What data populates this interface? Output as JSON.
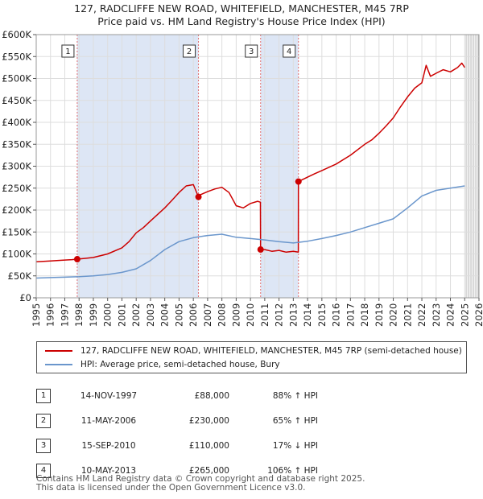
{
  "header": {
    "title_line1": "127, RADCLIFFE NEW ROAD, WHITEFIELD, MANCHESTER, M45 7RP",
    "title_line2": "Price paid vs. HM Land Registry's House Price Index (HPI)"
  },
  "colors": {
    "property": "#cc0000",
    "hpi": "#6a96cc",
    "shade": "#dde6f5",
    "marker_line": "#e07070",
    "grid": "#dddddd"
  },
  "chart_data": {
    "type": "line",
    "title": "Price paid vs. HM Land Registry's House Price Index (HPI)",
    "xlabel": "",
    "ylabel": "",
    "xlim": [
      1995,
      2026
    ],
    "ylim": [
      0,
      600000
    ],
    "y_ticks": [
      0,
      50000,
      100000,
      150000,
      200000,
      250000,
      300000,
      350000,
      400000,
      450000,
      500000,
      550000,
      600000
    ],
    "y_tick_labels": [
      "£0",
      "£50K",
      "£100K",
      "£150K",
      "£200K",
      "£250K",
      "£300K",
      "£350K",
      "£400K",
      "£450K",
      "£500K",
      "£550K",
      "£600K"
    ],
    "x_ticks": [
      1995,
      1996,
      1997,
      1998,
      1999,
      2000,
      2001,
      2002,
      2003,
      2004,
      2005,
      2006,
      2007,
      2008,
      2009,
      2010,
      2011,
      2012,
      2013,
      2014,
      2015,
      2016,
      2017,
      2018,
      2019,
      2020,
      2021,
      2022,
      2023,
      2024,
      2025,
      2026
    ],
    "x_tick_labels": [
      "1995",
      "1996",
      "1997",
      "1998",
      "1999",
      "2000",
      "2001",
      "2002",
      "2003",
      "2004",
      "2005",
      "2006",
      "2007",
      "2008",
      "2009",
      "2010",
      "2011",
      "2012",
      "2013",
      "2014",
      "2015",
      "2016",
      "2017",
      "2018",
      "2019",
      "2020",
      "2021",
      "2022",
      "2023",
      "2024",
      "2025",
      "2026"
    ],
    "shaded_ranges": [
      [
        1997.87,
        2006.36
      ],
      [
        2010.71,
        2013.36
      ]
    ],
    "future_from": 2025.1,
    "series": [
      {
        "name": "127, RADCLIFFE NEW ROAD, WHITEFIELD, MANCHESTER, M45 7RP (semi-detached house)",
        "key": "property",
        "x": [
          1995.0,
          1996.0,
          1997.0,
          1997.5,
          1997.87,
          1998.5,
          1999.0,
          2000.0,
          2001.0,
          2001.5,
          2002.0,
          2002.5,
          2003.0,
          2003.5,
          2004.0,
          2004.5,
          2005.0,
          2005.5,
          2006.0,
          2006.36,
          2006.5,
          2007.0,
          2007.5,
          2008.0,
          2008.5,
          2009.0,
          2009.5,
          2010.0,
          2010.5,
          2010.7,
          2010.71,
          2011.0,
          2011.5,
          2012.0,
          2012.5,
          2013.0,
          2013.35,
          2013.36,
          2014.0,
          2014.5,
          2015.0,
          2016.0,
          2017.0,
          2018.0,
          2018.5,
          2019.0,
          2019.5,
          2020.0,
          2020.5,
          2021.0,
          2021.5,
          2022.0,
          2022.3,
          2022.6,
          2023.0,
          2023.5,
          2024.0,
          2024.5,
          2024.8,
          2025.0
        ],
        "y": [
          82000,
          84000,
          86000,
          87000,
          88000,
          90000,
          92000,
          100000,
          114000,
          128000,
          148000,
          160000,
          175000,
          190000,
          205000,
          222000,
          240000,
          255000,
          258000,
          230000,
          235000,
          242000,
          248000,
          252000,
          240000,
          210000,
          205000,
          215000,
          220000,
          218000,
          110000,
          110000,
          106000,
          108000,
          104000,
          106000,
          104000,
          265000,
          275000,
          283000,
          290000,
          305000,
          325000,
          350000,
          360000,
          375000,
          392000,
          410000,
          435000,
          458000,
          478000,
          490000,
          530000,
          505000,
          512000,
          520000,
          515000,
          525000,
          535000,
          525000
        ]
      },
      {
        "name": "HPI: Average price, semi-detached house, Bury",
        "key": "hpi",
        "x": [
          1995.0,
          1996.0,
          1997.0,
          1998.0,
          1999.0,
          2000.0,
          2001.0,
          2002.0,
          2003.0,
          2004.0,
          2005.0,
          2006.0,
          2007.0,
          2008.0,
          2009.0,
          2010.0,
          2011.0,
          2012.0,
          2013.0,
          2014.0,
          2015.0,
          2016.0,
          2017.0,
          2018.0,
          2019.0,
          2020.0,
          2021.0,
          2022.0,
          2023.0,
          2024.0,
          2025.0
        ],
        "y": [
          45000,
          46000,
          47000,
          48000,
          50000,
          53000,
          58000,
          66000,
          85000,
          110000,
          128000,
          137000,
          142000,
          145000,
          138000,
          135000,
          132000,
          128000,
          125000,
          129000,
          135000,
          142000,
          150000,
          160000,
          170000,
          180000,
          205000,
          232000,
          245000,
          250000,
          255000
        ]
      }
    ],
    "sales": [
      {
        "num": "1",
        "x": 1997.87,
        "y": 88000
      },
      {
        "num": "2",
        "x": 2006.36,
        "y": 230000
      },
      {
        "num": "3",
        "x": 2010.71,
        "y": 110000
      },
      {
        "num": "4",
        "x": 2013.36,
        "y": 265000
      }
    ]
  },
  "legend": {
    "property_label": "127, RADCLIFFE NEW ROAD, WHITEFIELD, MANCHESTER, M45 7RP (semi-detached house)",
    "hpi_label": "HPI: Average price, semi-detached house, Bury"
  },
  "sales_table": [
    {
      "num": "1",
      "date": "14-NOV-1997",
      "price": "£88,000",
      "hpi": "88% ↑ HPI"
    },
    {
      "num": "2",
      "date": "11-MAY-2006",
      "price": "£230,000",
      "hpi": "65% ↑ HPI"
    },
    {
      "num": "3",
      "date": "15-SEP-2010",
      "price": "£110,000",
      "hpi": "17% ↓ HPI"
    },
    {
      "num": "4",
      "date": "10-MAY-2013",
      "price": "£265,000",
      "hpi": "106% ↑ HPI"
    }
  ],
  "footer": {
    "line1": "Contains HM Land Registry data © Crown copyright and database right 2025.",
    "line2": "This data is licensed under the Open Government Licence v3.0."
  }
}
